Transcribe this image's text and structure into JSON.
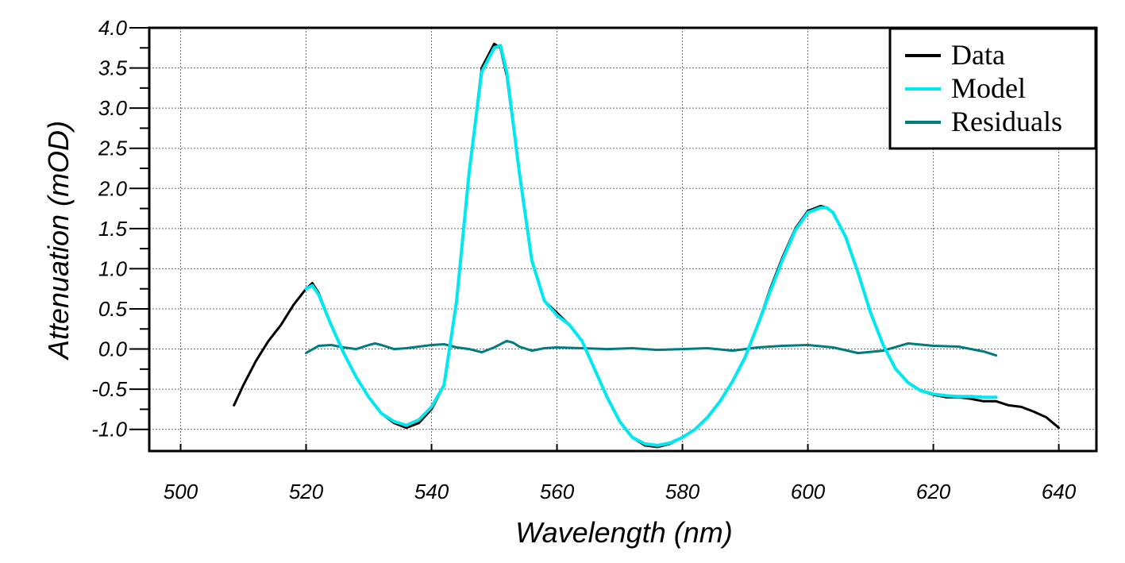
{
  "chart_data": {
    "type": "line",
    "title": "",
    "xlabel": "Wavelength (nm)",
    "ylabel": "Attenuation (mOD)",
    "xlim": [
      495,
      646
    ],
    "ylim": [
      -1.27,
      4.0
    ],
    "xticks": [
      500,
      520,
      540,
      560,
      580,
      600,
      620,
      640
    ],
    "xtick_labels": [
      "500",
      "520",
      "540",
      "560",
      "580",
      "600",
      "620",
      "640"
    ],
    "yticks": [
      4.0,
      3.5,
      3.0,
      2.5,
      2.0,
      1.5,
      1.0,
      0.5,
      0.0,
      -0.5,
      -1.0
    ],
    "ytick_labels": [
      "4.0",
      "3.5",
      "3.0",
      "2.5",
      "2.0",
      "1.5",
      "1.0",
      "0.5",
      "0.0",
      "-0.5",
      "-1.0"
    ],
    "grid": true,
    "legend_position": "top-right",
    "series": [
      {
        "name": "Data",
        "color": "#000000",
        "x": [
          508.5,
          510,
          512,
          514,
          516,
          518,
          520,
          521,
          522,
          524,
          526,
          528,
          530,
          532,
          534,
          536,
          538,
          540,
          542,
          544,
          546,
          548,
          550,
          551,
          552,
          554,
          556,
          558,
          560,
          562,
          564,
          566,
          568,
          570,
          572,
          574,
          576,
          578,
          580,
          582,
          584,
          586,
          588,
          590,
          592,
          594,
          596,
          598,
          600,
          602,
          603,
          604,
          606,
          608,
          610,
          612,
          614,
          616,
          618,
          620,
          622,
          624,
          626,
          628,
          630,
          632,
          634,
          636,
          638,
          640
        ],
        "y": [
          -0.7,
          -0.45,
          -0.15,
          0.1,
          0.3,
          0.55,
          0.75,
          0.82,
          0.7,
          0.3,
          -0.05,
          -0.35,
          -0.6,
          -0.8,
          -0.92,
          -0.98,
          -0.92,
          -0.75,
          -0.45,
          0.6,
          2.2,
          3.5,
          3.8,
          3.75,
          3.4,
          2.2,
          1.1,
          0.6,
          0.45,
          0.3,
          0.1,
          -0.25,
          -0.6,
          -0.9,
          -1.1,
          -1.2,
          -1.22,
          -1.18,
          -1.1,
          -1.0,
          -0.85,
          -0.65,
          -0.4,
          -0.1,
          0.3,
          0.75,
          1.15,
          1.5,
          1.72,
          1.78,
          1.76,
          1.7,
          1.4,
          0.95,
          0.45,
          0.05,
          -0.25,
          -0.42,
          -0.52,
          -0.57,
          -0.6,
          -0.6,
          -0.62,
          -0.65,
          -0.65,
          -0.7,
          -0.72,
          -0.78,
          -0.85,
          -0.98
        ]
      },
      {
        "name": "Model",
        "color": "#00E8F0",
        "x": [
          520,
          521,
          522,
          524,
          526,
          528,
          530,
          532,
          534,
          536,
          538,
          540,
          542,
          544,
          546,
          548,
          550,
          551,
          552,
          554,
          556,
          558,
          560,
          562,
          564,
          566,
          568,
          570,
          572,
          574,
          576,
          578,
          580,
          582,
          584,
          586,
          588,
          590,
          592,
          594,
          596,
          598,
          600,
          602,
          603,
          604,
          606,
          608,
          610,
          612,
          614,
          616,
          618,
          620,
          622,
          624,
          626,
          628,
          630
        ],
        "y": [
          0.75,
          0.79,
          0.68,
          0.3,
          -0.05,
          -0.35,
          -0.6,
          -0.8,
          -0.9,
          -0.95,
          -0.88,
          -0.72,
          -0.45,
          0.6,
          2.2,
          3.45,
          3.75,
          3.78,
          3.45,
          2.2,
          1.1,
          0.6,
          0.42,
          0.3,
          0.1,
          -0.25,
          -0.6,
          -0.9,
          -1.1,
          -1.18,
          -1.2,
          -1.17,
          -1.1,
          -1.0,
          -0.85,
          -0.65,
          -0.4,
          -0.1,
          0.3,
          0.72,
          1.12,
          1.48,
          1.7,
          1.76,
          1.76,
          1.7,
          1.4,
          0.95,
          0.45,
          0.05,
          -0.25,
          -0.42,
          -0.52,
          -0.56,
          -0.58,
          -0.59,
          -0.59,
          -0.6,
          -0.6
        ]
      },
      {
        "name": "Residuals",
        "color": "#007B80",
        "x": [
          520,
          522,
          524,
          526,
          528,
          530,
          531,
          532,
          534,
          536,
          538,
          540,
          542,
          544,
          546,
          548,
          550,
          552,
          553,
          554,
          556,
          558,
          560,
          564,
          568,
          572,
          576,
          580,
          584,
          588,
          592,
          596,
          600,
          604,
          608,
          612,
          616,
          620,
          624,
          628,
          630
        ],
        "y": [
          -0.05,
          0.04,
          0.05,
          0.02,
          0.0,
          0.05,
          0.07,
          0.05,
          0.0,
          0.01,
          0.03,
          0.05,
          0.06,
          0.02,
          0.0,
          -0.04,
          0.02,
          0.1,
          0.08,
          0.03,
          -0.02,
          0.01,
          0.02,
          0.01,
          0.0,
          0.01,
          -0.01,
          0.0,
          0.01,
          -0.02,
          0.02,
          0.04,
          0.05,
          0.02,
          -0.05,
          -0.02,
          0.07,
          0.04,
          0.03,
          -0.03,
          -0.08
        ]
      }
    ]
  }
}
